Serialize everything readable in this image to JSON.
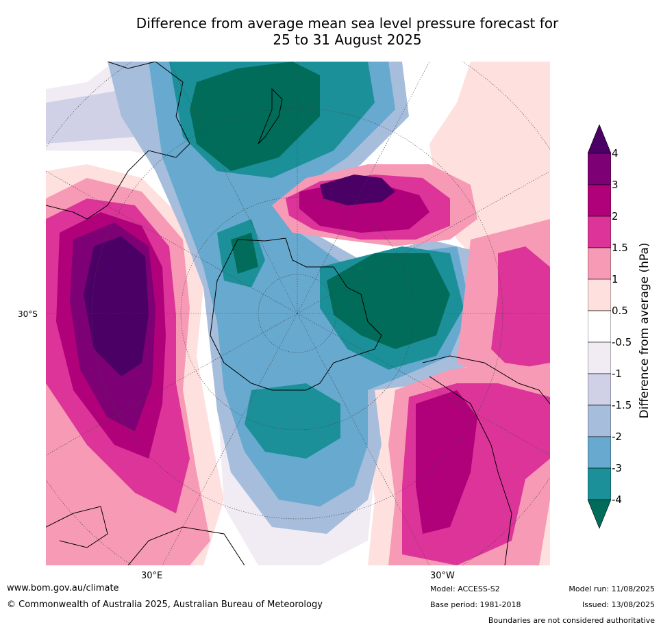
{
  "title_line1": "Difference from average mean sea level pressure forecast for",
  "title_line2": "25 to 31 August 2025",
  "map": {
    "projection": "south-polar-stereographic",
    "lat_label": "30°S",
    "lon_labels": [
      "30°E",
      "30°W"
    ]
  },
  "colorbar": {
    "title": "Difference from average (hPa)",
    "ticks": [
      "4",
      "3",
      "2",
      "1.5",
      "1",
      "0.5",
      "-0.5",
      "-1",
      "-1.5",
      "-2",
      "-3",
      "-4"
    ],
    "colors": {
      "gt4": "#4b0066",
      "3to4": "#7d0074",
      "2to3": "#b0007a",
      "1.5to2": "#dc3499",
      "1to1.5": "#f79ab5",
      "0.5to1": "#fee0de",
      "neutral": "#ffffff",
      "-1to-0.5": "#f1ecf4",
      "-1.5to-1": "#d0d1e6",
      "-2to-1.5": "#a6bddb",
      "-3to-2": "#67a9cf",
      "-4to-3": "#1c9099",
      "lt-4": "#016c59"
    }
  },
  "footer": {
    "website": "www.bom.gov.au/climate",
    "copyright": "© Commonwealth of Australia 2025, Australian Bureau of Meteorology",
    "model": "Model: ACCESS-S2",
    "base_period": "Base period: 1981-2018",
    "model_run": "Model run: 11/08/2025",
    "issued": "Issued: 13/08/2025",
    "disclaimer": "Boundaries are not considered authoritative"
  }
}
